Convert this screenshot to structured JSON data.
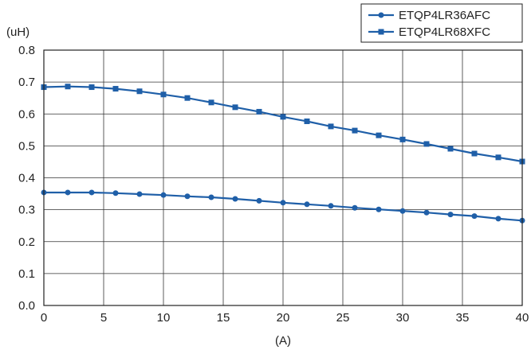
{
  "chart_data": {
    "type": "line",
    "title": "",
    "xlabel": "(A)",
    "ylabel": "(uH)",
    "xlim": [
      0,
      40
    ],
    "ylim": [
      0,
      0.8
    ],
    "xticks": [
      0,
      5,
      10,
      15,
      20,
      25,
      30,
      35,
      40
    ],
    "yticks": [
      0.0,
      0.1,
      0.2,
      0.3,
      0.4,
      0.5,
      0.6,
      0.7,
      0.8
    ],
    "ytick_labels": [
      "0.0",
      "0.1",
      "0.2",
      "0.3",
      "0.4",
      "0.5",
      "0.6",
      "0.7",
      "0.8"
    ],
    "grid": true,
    "legend_position": "top-right",
    "series": [
      {
        "name": "ETQP4LR36AFC",
        "marker": "circle",
        "color": "#1f5fa8",
        "x": [
          0,
          2,
          4,
          6,
          8,
          10,
          12,
          14,
          16,
          18,
          20,
          22,
          24,
          26,
          28,
          30,
          32,
          34,
          36,
          38,
          40
        ],
        "values": [
          0.354,
          0.354,
          0.354,
          0.352,
          0.349,
          0.346,
          0.342,
          0.339,
          0.334,
          0.328,
          0.322,
          0.317,
          0.312,
          0.306,
          0.301,
          0.296,
          0.291,
          0.285,
          0.28,
          0.272,
          0.266
        ]
      },
      {
        "name": "ETQP4LR68XFC",
        "marker": "square",
        "color": "#1f5fa8",
        "x": [
          0,
          2,
          4,
          6,
          8,
          10,
          12,
          14,
          16,
          18,
          20,
          22,
          24,
          26,
          28,
          30,
          32,
          34,
          36,
          38,
          40
        ],
        "values": [
          0.684,
          0.686,
          0.684,
          0.679,
          0.671,
          0.661,
          0.65,
          0.636,
          0.621,
          0.607,
          0.591,
          0.577,
          0.561,
          0.548,
          0.533,
          0.52,
          0.506,
          0.491,
          0.476,
          0.464,
          0.451
        ]
      }
    ]
  }
}
